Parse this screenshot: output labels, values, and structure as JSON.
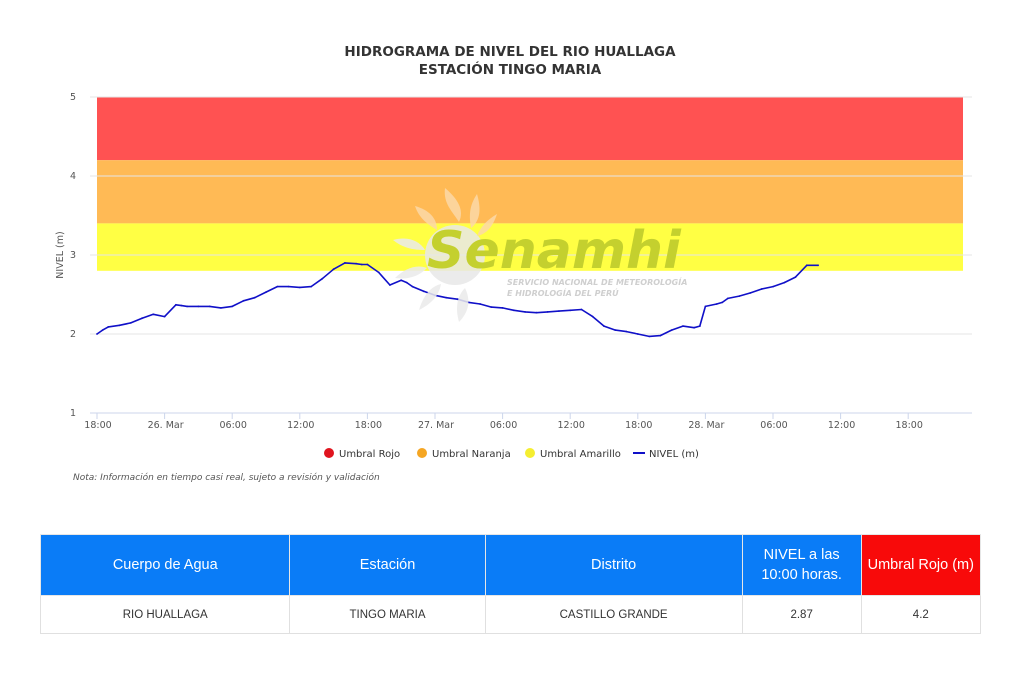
{
  "chart_data": {
    "type": "line",
    "title": "HIDROGRAMA DE NIVEL DEL RIO HUALLAGA",
    "subtitle": "ESTACIÓN TINGO MARIA",
    "ylabel": "NIVEL (m)",
    "ylim": [
      1,
      5
    ],
    "yticks": [
      "1",
      "2",
      "3",
      "4",
      "5"
    ],
    "xlim": [
      0,
      78
    ],
    "xticks": [
      {
        "h": 0,
        "label": "18:00"
      },
      {
        "h": 6,
        "label": "26. Mar"
      },
      {
        "h": 12,
        "label": "06:00"
      },
      {
        "h": 18,
        "label": "12:00"
      },
      {
        "h": 24,
        "label": "18:00"
      },
      {
        "h": 30,
        "label": "27. Mar"
      },
      {
        "h": 36,
        "label": "06:00"
      },
      {
        "h": 42,
        "label": "12:00"
      },
      {
        "h": 48,
        "label": "18:00"
      },
      {
        "h": 54,
        "label": "28. Mar"
      },
      {
        "h": 60,
        "label": "06:00"
      },
      {
        "h": 66,
        "label": "12:00"
      },
      {
        "h": 72,
        "label": "18:00"
      }
    ],
    "bands": [
      {
        "name": "Umbral Rojo",
        "from": 4.2,
        "to": 5.0,
        "color": "#ff5252"
      },
      {
        "name": "Umbral Naranja",
        "from": 3.4,
        "to": 4.2,
        "color": "#ffba55"
      },
      {
        "name": "Umbral Amarillo",
        "from": 2.8,
        "to": 3.4,
        "color": "#ffff44"
      }
    ],
    "series": [
      {
        "name": "NIVEL (m)",
        "color": "#1010c8",
        "x": [
          0,
          0.5,
          1,
          2,
          3,
          4,
          5,
          6,
          7,
          7.5,
          8,
          9,
          10,
          11,
          12,
          13,
          14,
          15,
          16,
          17,
          18,
          19,
          20,
          21,
          22,
          23,
          23.5,
          24,
          25,
          26,
          27,
          27.5,
          28,
          29,
          30,
          31,
          32,
          33,
          34,
          35,
          36,
          37,
          38,
          39,
          40,
          41,
          42,
          43,
          44,
          45,
          46,
          47,
          48,
          49,
          50,
          51,
          52,
          53,
          53.5,
          54,
          55,
          55.5,
          56,
          57,
          58,
          59,
          60,
          61,
          62,
          63,
          64
        ],
        "values": [
          2.0,
          2.05,
          2.09,
          2.11,
          2.14,
          2.2,
          2.25,
          2.22,
          2.37,
          2.36,
          2.35,
          2.35,
          2.35,
          2.33,
          2.35,
          2.42,
          2.46,
          2.53,
          2.6,
          2.6,
          2.59,
          2.6,
          2.7,
          2.82,
          2.9,
          2.89,
          2.88,
          2.88,
          2.78,
          2.62,
          2.68,
          2.65,
          2.6,
          2.54,
          2.49,
          2.46,
          2.44,
          2.4,
          2.38,
          2.34,
          2.33,
          2.3,
          2.28,
          2.27,
          2.28,
          2.29,
          2.3,
          2.31,
          2.22,
          2.1,
          2.05,
          2.03,
          2.0,
          1.97,
          1.98,
          2.05,
          2.1,
          2.08,
          2.1,
          2.35,
          2.38,
          2.4,
          2.45,
          2.48,
          2.52,
          2.57,
          2.6,
          2.65,
          2.72,
          2.87,
          2.87
        ]
      }
    ],
    "legend": [
      {
        "name": "Umbral Rojo",
        "color": "#e0141e",
        "kind": "dot"
      },
      {
        "name": "Umbral Naranja",
        "color": "#f5a623",
        "kind": "dot"
      },
      {
        "name": "Umbral Amarillo",
        "color": "#f5ee30",
        "kind": "dot"
      },
      {
        "name": "NIVEL (m)",
        "color": "#1010c8",
        "kind": "line"
      }
    ],
    "legend_position": "bottom-center",
    "grid": true
  },
  "note": "Nota: Información en tiempo casi real, sujeto a revisión y validación",
  "watermark": {
    "brand": "Senamhi",
    "line1": "SERVICIO NACIONAL DE METEOROLOGÍA",
    "line2": "E HIDROLOGÍA DEL PERÚ"
  },
  "table": {
    "headers": [
      "Cuerpo de Agua",
      "Estación",
      "Distrito",
      "NIVEL a las 10:00 horas.",
      "Umbral Rojo (m)"
    ],
    "row": [
      "RIO HUALLAGA",
      "TINGO MARIA",
      "CASTILLO GRANDE",
      "2.87",
      "4.2"
    ],
    "header_color": "#0a7cf7",
    "highlight_color": "#f80a0a"
  }
}
